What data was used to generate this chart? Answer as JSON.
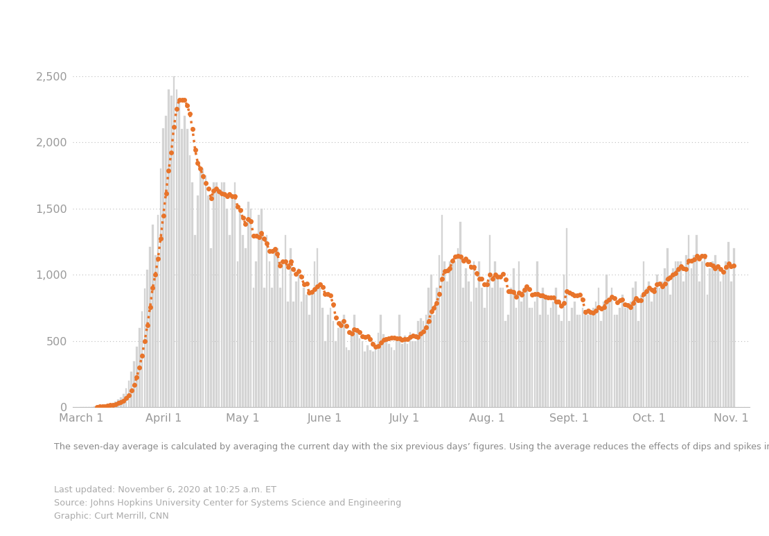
{
  "title": "",
  "background_color": "#ffffff",
  "bar_color": "#d4d4d4",
  "line_color": "#E8742A",
  "bar_edge_color": "#d4d4d4",
  "ytick_labels": [
    "0",
    "500",
    "1,000",
    "1,500",
    "2,000",
    "2,500"
  ],
  "ytick_values": [
    0,
    500,
    1000,
    1500,
    2000,
    2500
  ],
  "ylim": [
    0,
    2750
  ],
  "xtick_labels": [
    "March 1",
    "April 1",
    "May 1",
    "June 1",
    "July 1",
    "Aug. 1",
    "Sept. 1",
    "Oct. 1",
    "Nov. 1"
  ],
  "annotation_main": "The seven-day average is calculated by averaging the current day with the six previous days’ figures. Using the average reduces the effects of dips and spikes in the data caused by reporting delays or changes in data collection.",
  "annotation_source": "Last updated: November 6, 2020 at 10:25 a.m. ET\nSource: Johns Hopkins University Center for Systems Science and Engineering\nGraphic: Curt Merrill, CNN",
  "daily_deaths": [
    2,
    1,
    3,
    4,
    5,
    7,
    10,
    12,
    14,
    19,
    23,
    27,
    36,
    43,
    58,
    77,
    100,
    142,
    200,
    267,
    347,
    460,
    598,
    727,
    895,
    1040,
    1212,
    1380,
    1150,
    1450,
    1800,
    2108,
    2200,
    2400,
    2350,
    2500,
    2400,
    2300,
    2100,
    2200,
    2100,
    1900,
    1700,
    1300,
    1600,
    1800,
    1800,
    1750,
    1600,
    1200,
    1700,
    1700,
    1650,
    1700,
    1700,
    1500,
    1300,
    1600,
    1700,
    1100,
    1500,
    1300,
    1200,
    1550,
    1500,
    900,
    1100,
    1450,
    1500,
    900,
    1300,
    1100,
    900,
    1200,
    1200,
    900,
    1100,
    1300,
    800,
    1200,
    800,
    950,
    1050,
    800,
    900,
    850,
    700,
    850,
    1100,
    1200,
    900,
    750,
    500,
    700,
    750,
    650,
    500,
    600,
    650,
    700,
    450,
    430,
    580,
    700,
    580,
    520,
    500,
    420,
    470,
    430,
    420,
    440,
    560,
    700,
    550,
    500,
    480,
    450,
    430,
    520,
    700,
    480,
    540,
    480,
    570,
    500,
    500,
    650,
    670,
    650,
    700,
    900,
    1000,
    700,
    900,
    1150,
    1450,
    1100,
    950,
    1100,
    1100,
    1100,
    1200,
    1400,
    900,
    1050,
    950,
    800,
    1100,
    900,
    1100,
    900,
    750,
    950,
    1300,
    900,
    1100,
    1000,
    900,
    900,
    650,
    700,
    900,
    1050,
    750,
    1100,
    800,
    900,
    900,
    750,
    750,
    800,
    1100,
    700,
    900,
    850,
    700,
    750,
    800,
    900,
    700,
    650,
    1000,
    1350,
    650,
    750,
    800,
    700,
    700,
    750,
    700,
    700,
    700,
    750,
    800,
    900,
    650,
    800,
    1000,
    800,
    900,
    700,
    700,
    750,
    850,
    750,
    750,
    800,
    900,
    950,
    650,
    850,
    1100,
    900,
    950,
    800,
    900,
    1000,
    900,
    950,
    1050,
    1200,
    850,
    1050,
    1100,
    1100,
    1100,
    950,
    1150,
    1300,
    1050,
    1150,
    1300,
    950,
    1100,
    1150,
    850,
    1050,
    1100,
    1150,
    1050,
    950,
    1000,
    1100,
    1250,
    950,
    1200
  ]
}
